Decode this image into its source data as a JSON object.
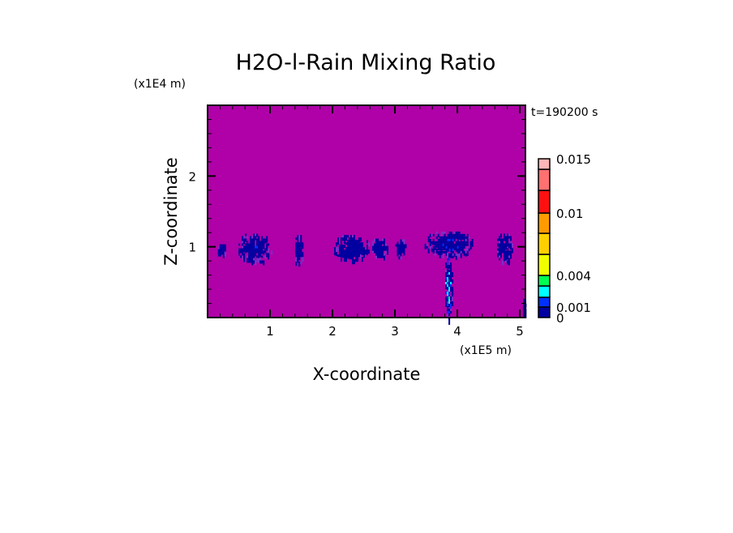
{
  "chart_data": {
    "type": "heatmap",
    "title": "H2O-l-Rain Mixing Ratio",
    "xlabel": "X-coordinate",
    "ylabel": "Z-coordinate",
    "x_unit": "(x1E5 m)",
    "y_unit": "(x1E4 m)",
    "time_label": "t=190200 s",
    "xlim": [
      0,
      5.09
    ],
    "ylim": [
      0,
      3.0
    ],
    "x_ticks": [
      1,
      2,
      3,
      4,
      5
    ],
    "y_ticks": [
      1,
      2
    ],
    "background_color": "#b000a8",
    "colorbar": {
      "levels": [
        0,
        0.001,
        0.002,
        0.003,
        0.004,
        0.006,
        0.008,
        0.01,
        0.012,
        0.014,
        0.015
      ],
      "colors": [
        "#0000a0",
        "#0030ff",
        "#00ffff",
        "#00ff50",
        "#f0ff00",
        "#ffd000",
        "#ff9a00",
        "#ff1010",
        "#ff7070",
        "#ffb6b6"
      ],
      "tick_labels": [
        {
          "value": 0,
          "label": "0"
        },
        {
          "value": 0.001,
          "label": "0.001"
        },
        {
          "value": 0.004,
          "label": "0.004"
        },
        {
          "value": 0.01,
          "label": "0.01"
        },
        {
          "value": 0.015,
          "label": "0.015"
        }
      ]
    },
    "rain_regions": [
      {
        "x": 0.22,
        "z": 0.97,
        "dx": 0.08,
        "dz": 0.1,
        "max": 0.0005
      },
      {
        "x": 0.75,
        "z": 1.0,
        "dx": 0.28,
        "dz": 0.22,
        "max": 0.0008
      },
      {
        "x": 1.45,
        "z": 0.95,
        "dx": 0.07,
        "dz": 0.25,
        "max": 0.0006
      },
      {
        "x": 2.3,
        "z": 1.0,
        "dx": 0.3,
        "dz": 0.2,
        "max": 0.0007
      },
      {
        "x": 2.75,
        "z": 1.0,
        "dx": 0.14,
        "dz": 0.15,
        "max": 0.0006
      },
      {
        "x": 3.08,
        "z": 1.0,
        "dx": 0.1,
        "dz": 0.14,
        "max": 0.0005
      },
      {
        "x": 3.85,
        "z": 1.05,
        "dx": 0.4,
        "dz": 0.2,
        "max": 0.0009
      },
      {
        "x": 3.85,
        "z": 0.45,
        "dx": 0.07,
        "dz": 0.5,
        "max": 0.0025
      },
      {
        "x": 4.75,
        "z": 1.0,
        "dx": 0.14,
        "dz": 0.22,
        "max": 0.0006
      },
      {
        "x": 5.06,
        "z": 0.15,
        "dx": 0.03,
        "dz": 0.15,
        "max": 0.0005
      }
    ]
  }
}
